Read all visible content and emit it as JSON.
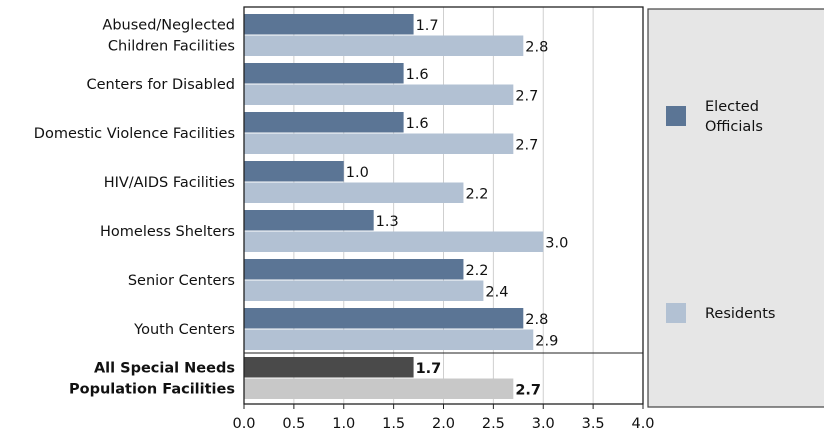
{
  "chart_data": {
    "type": "bar",
    "orientation": "horizontal",
    "categories": [
      [
        "Abused/Neglected",
        "Children Facilities"
      ],
      [
        "Centers for Disabled"
      ],
      [
        "Domestic Violence Facilities"
      ],
      [
        "HIV/AIDS Facilities"
      ],
      [
        "Homeless Shelters"
      ],
      [
        "Senior Centers"
      ],
      [
        "Youth Centers"
      ],
      [
        "All Special Needs",
        "Population Facilities"
      ]
    ],
    "series": [
      {
        "name": "Elected Officials",
        "values": [
          1.7,
          1.6,
          1.6,
          1.0,
          1.3,
          2.2,
          2.8,
          1.7
        ],
        "value_labels": [
          "1.7",
          "1.6",
          "1.6",
          "1.0",
          "1.3",
          "2.2",
          "2.8",
          "1.7"
        ],
        "color": "#5b7595",
        "summary_color": "#4a4a4a"
      },
      {
        "name": "Residents",
        "values": [
          2.8,
          2.7,
          2.7,
          2.2,
          3.0,
          2.4,
          2.9,
          2.7
        ],
        "value_labels": [
          "2.8",
          "2.7",
          "2.7",
          "2.2",
          "3.0",
          "2.4",
          "2.9",
          "2.7"
        ],
        "color": "#b2c1d3",
        "summary_color": "#c8c8c8"
      }
    ],
    "summary_category_index": 7,
    "xlim": [
      0,
      4.0
    ],
    "xticks": [
      "0.0",
      "0.5",
      "1.0",
      "1.5",
      "2.0",
      "2.5",
      "3.0",
      "3.5",
      "4.0"
    ],
    "grid": true,
    "legend": {
      "placement": "right",
      "items": [
        {
          "label_lines": [
            "Elected",
            "Officials"
          ],
          "color": "#5b7595"
        },
        {
          "label_lines": [
            "Residents"
          ],
          "color": "#b2c1d3"
        }
      ]
    }
  }
}
